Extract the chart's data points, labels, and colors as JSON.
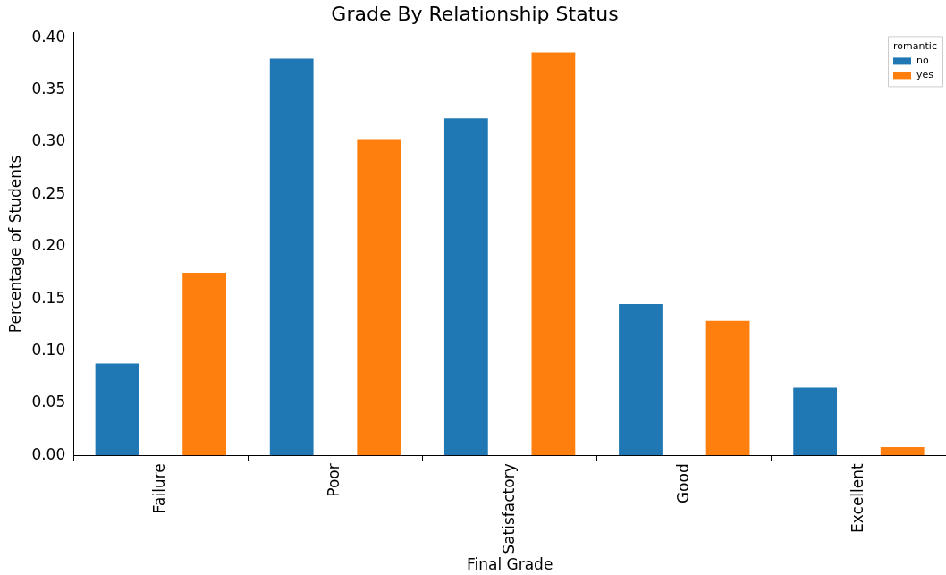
{
  "chart_data": {
    "type": "bar",
    "title": "Grade By Relationship Status",
    "xlabel": "Final Grade",
    "ylabel": "Percentage of Students",
    "legend_title": "romantic",
    "categories": [
      "Failure",
      "Poor",
      "Satisfactory",
      "Good",
      "Excellent"
    ],
    "series": [
      {
        "name": "no",
        "color": "#1f77b4",
        "values": [
          0.088,
          0.38,
          0.323,
          0.145,
          0.065
        ]
      },
      {
        "name": "yes",
        "color": "#ff7f0e",
        "values": [
          0.175,
          0.303,
          0.386,
          0.129,
          0.008
        ]
      }
    ],
    "ylim": [
      0,
      0.405
    ],
    "yticks": [
      {
        "value": 0,
        "label": "0.00"
      },
      {
        "value": 0.05,
        "label": "0.05"
      },
      {
        "value": 0.1,
        "label": "0.10"
      },
      {
        "value": 0.15,
        "label": "0.15"
      },
      {
        "value": 0.2,
        "label": "0.20"
      },
      {
        "value": 0.25,
        "label": "0.25"
      },
      {
        "value": 0.3,
        "label": "0.30"
      },
      {
        "value": 0.35,
        "label": "0.35"
      },
      {
        "value": 0.4,
        "label": "0.40"
      }
    ],
    "grid": false,
    "legend": "top right"
  }
}
